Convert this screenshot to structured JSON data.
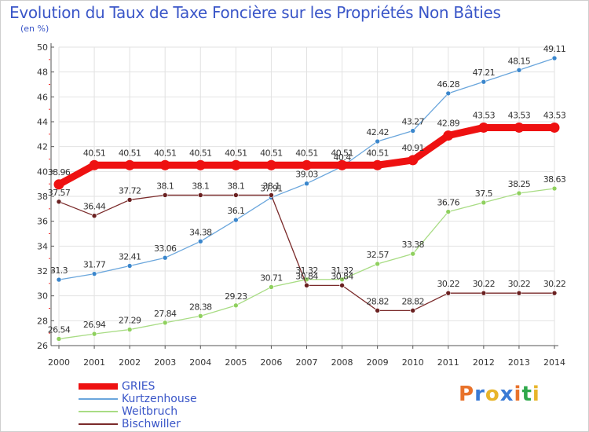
{
  "header": {
    "title": "Evolution du Taux de Taxe Foncière sur les Propriétés Non Bâties",
    "subtitle": "(en %)"
  },
  "logo": {
    "text": "Proxiti",
    "colors": [
      "#e8722a",
      "#3a7bd5",
      "#e8b52a",
      "#3a7bd5",
      "#e8722a",
      "#2ea84a",
      "#e8b52a"
    ]
  },
  "chart_data": {
    "type": "line",
    "title": "Evolution du Taux de Taxe Foncière sur les Propriétés Non Bâties",
    "ylabel": "(en %)",
    "x": [
      "2000",
      "2001",
      "2002",
      "2003",
      "2004",
      "2005",
      "2006",
      "2007",
      "2008",
      "2009",
      "2010",
      "2011",
      "2012",
      "2013",
      "2014"
    ],
    "ylim": [
      26,
      50
    ],
    "yticks": [
      26,
      28,
      30,
      32,
      34,
      36,
      38,
      40,
      42,
      44,
      46,
      48,
      50
    ],
    "grid": true,
    "legend": "bottom-left",
    "series": [
      {
        "name": "GRIES",
        "color": "#ee1111",
        "width": 9,
        "values": [
          38.96,
          40.51,
          40.51,
          40.51,
          40.51,
          40.51,
          40.51,
          40.51,
          40.51,
          40.51,
          40.91,
          42.89,
          43.53,
          43.53,
          43.53
        ],
        "labels": [
          "38.96",
          "40.51",
          "40.51",
          "40.51",
          "40.51",
          "40.51",
          "40.51",
          "40.51",
          "40.51",
          "40.51",
          "40.91",
          "42.89",
          "43.53",
          "43.53",
          "43.53"
        ]
      },
      {
        "name": "Kurtzenhouse",
        "color": "#6aa6dc",
        "marker": "#3a86cc",
        "width": 1.3,
        "values": [
          31.3,
          31.77,
          32.41,
          33.06,
          34.38,
          36.1,
          37.91,
          39.03,
          40.4,
          42.42,
          43.27,
          46.28,
          47.21,
          48.15,
          49.11
        ],
        "labels": [
          "31.3",
          "31.77",
          "32.41",
          "33.06",
          "34.38",
          "36.1",
          "37.91",
          "39.03",
          "40.4",
          "42.42",
          "43.27",
          "46.28",
          "47.21",
          "48.15",
          "49.11"
        ]
      },
      {
        "name": "Weitbruch",
        "color": "#a8dc84",
        "marker": "#8fd05e",
        "width": 1.3,
        "values": [
          26.54,
          26.94,
          27.29,
          27.84,
          28.38,
          29.23,
          30.71,
          31.32,
          31.32,
          32.57,
          33.38,
          36.76,
          37.5,
          38.25,
          38.63
        ],
        "labels": [
          "26.54",
          "26.94",
          "27.29",
          "27.84",
          "28.38",
          "29.23",
          "30.71",
          "31.32",
          "31.32",
          "32.57",
          "33.38",
          "36.76",
          "37.5",
          "38.25",
          "38.63"
        ]
      },
      {
        "name": "Bischwiller",
        "color": "#7a2a2a",
        "marker": "#6a2020",
        "width": 1.3,
        "values": [
          37.57,
          36.44,
          37.72,
          38.1,
          38.1,
          38.1,
          38.1,
          30.84,
          30.84,
          28.82,
          28.82,
          30.22,
          30.22,
          30.22,
          30.22
        ],
        "labels": [
          "37.57",
          "36.44",
          "37.72",
          "38.1",
          "38.1",
          "38.1",
          "38.1",
          "30.84",
          "30.84",
          "28.82",
          "28.82",
          "30.22",
          "30.22",
          "30.22",
          "30.22"
        ]
      }
    ]
  }
}
